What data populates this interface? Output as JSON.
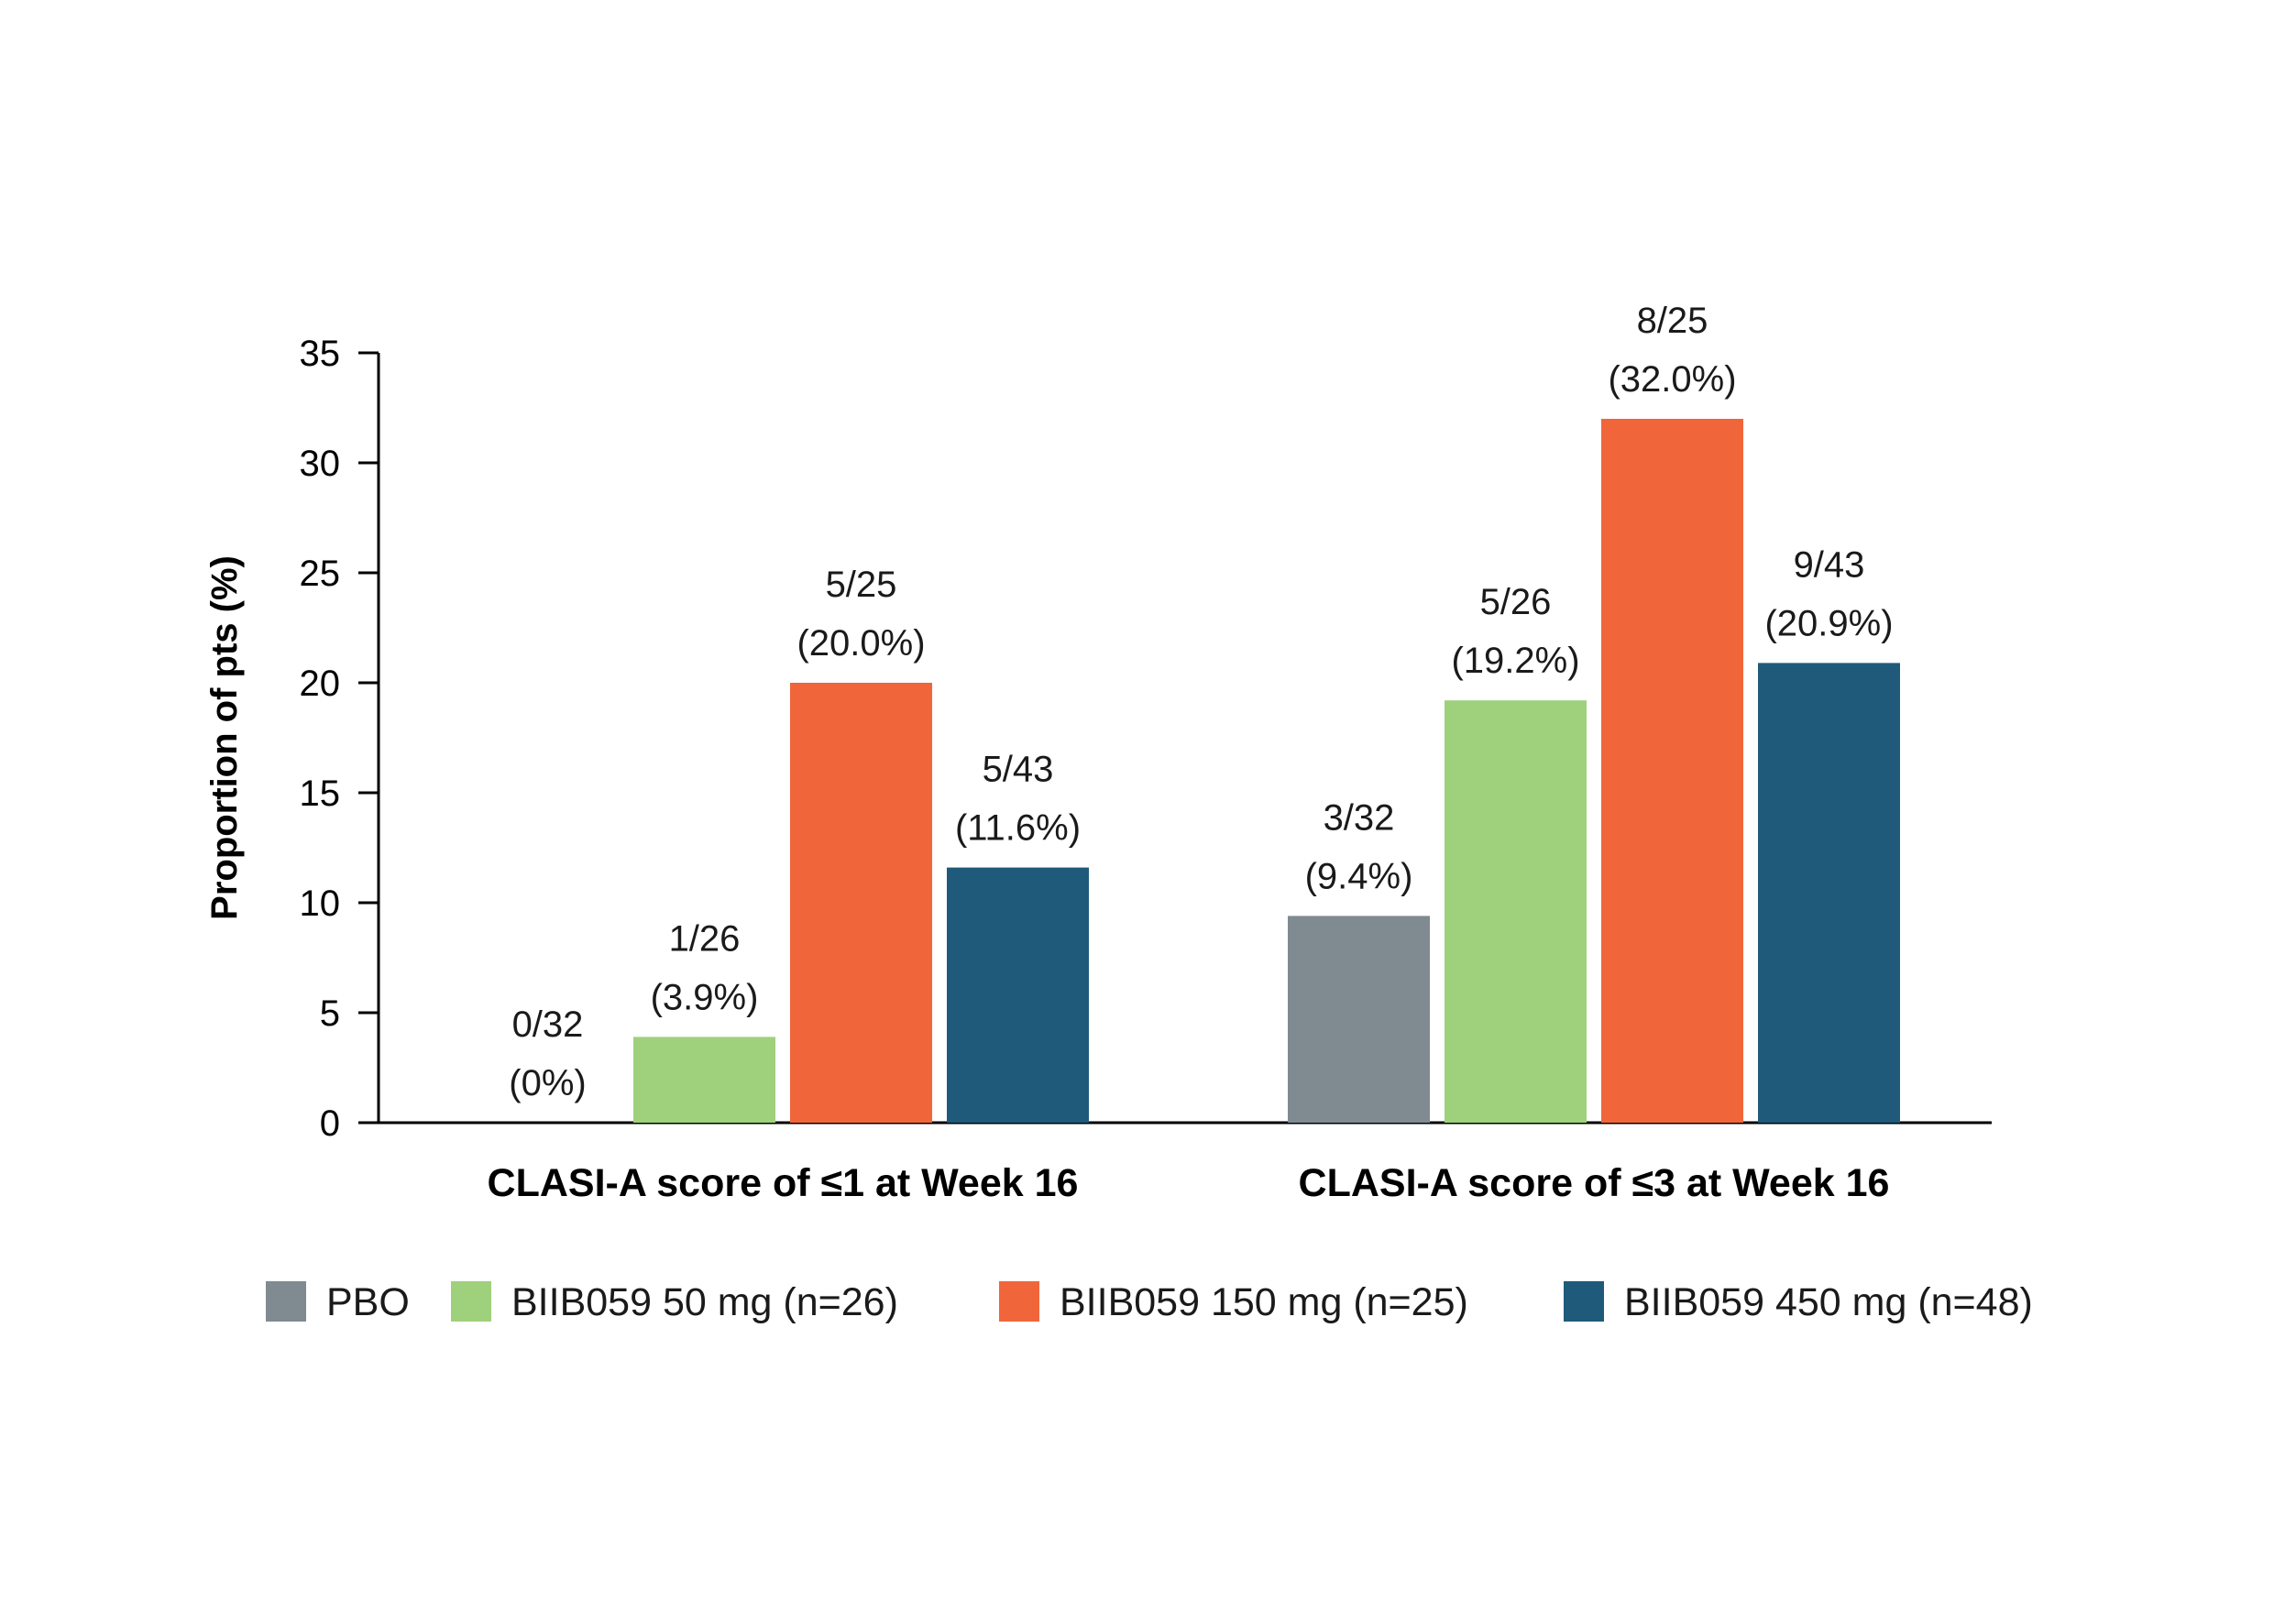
{
  "chart_data": {
    "type": "bar",
    "title": "",
    "xlabel": "",
    "ylabel": "Proportion of pts (%)",
    "ylim": [
      0,
      35
    ],
    "yticks": [
      0,
      5,
      10,
      15,
      20,
      25,
      30,
      35
    ],
    "grid": false,
    "legend_position": "bottom",
    "categories": [
      "CLASI-A score of ≤1 at Week 16",
      "CLASI-A score of ≤3 at Week 16"
    ],
    "series": [
      {
        "name": "PBO",
        "color": "#7f8a91",
        "values": [
          0,
          9.4
        ],
        "labels": [
          [
            "0/32",
            "(0%)"
          ],
          [
            "3/32",
            "(9.4%)"
          ]
        ]
      },
      {
        "name": "BIIB059 50 mg (n=26)",
        "color": "#9fd07c",
        "values": [
          3.9,
          19.2
        ],
        "labels": [
          [
            "1/26",
            "(3.9%)"
          ],
          [
            "5/26",
            "(19.2%)"
          ]
        ]
      },
      {
        "name": "BIIB059 150 mg (n=25)",
        "color": "#f0663a",
        "values": [
          20.0,
          32.0
        ],
        "labels": [
          [
            "5/25",
            "(20.0%)"
          ],
          [
            "8/25",
            "(32.0%)"
          ]
        ]
      },
      {
        "name": "BIIB059 450 mg (n=48)",
        "color": "#1f5a7a",
        "values": [
          11.6,
          20.9
        ],
        "labels": [
          [
            "5/43",
            "(11.6%)"
          ],
          [
            "9/43",
            "(20.9%)"
          ]
        ]
      }
    ]
  }
}
